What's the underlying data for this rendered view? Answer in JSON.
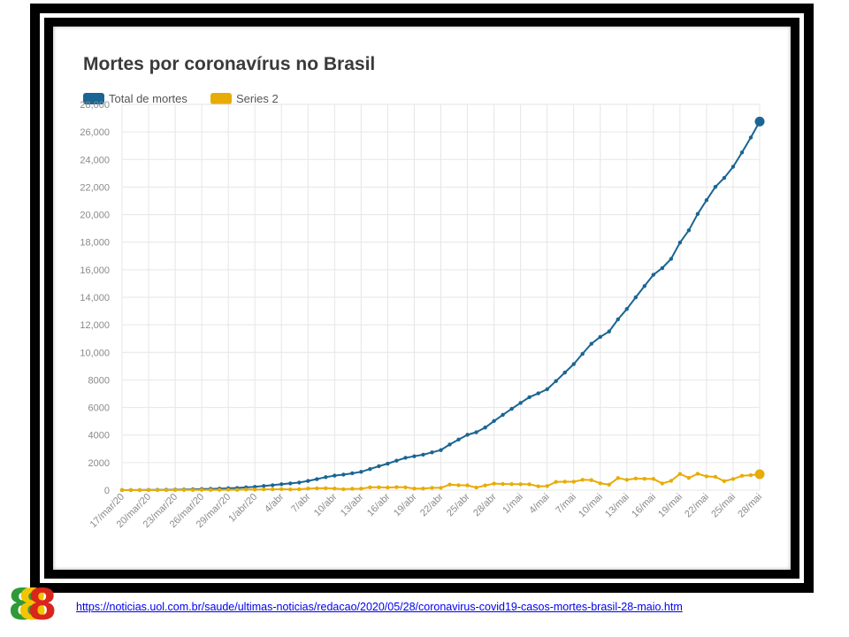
{
  "link_url_text": "https://noticias.uol.com.br/saude/ultimas-noticias/redacao/2020/05/28/coronavirus-covid19-casos-mortes-brasil-28-maio.htm",
  "logo_text": "8",
  "colors": {
    "series1": "#1a6593",
    "series2": "#e8ac06",
    "grid": "#e6e6e6",
    "logo_green": "#2f9a3a",
    "logo_yellow": "#f2c500",
    "logo_red": "#d8261c"
  },
  "chart_data": {
    "type": "line",
    "title": "Mortes por coronavírus no Brasil",
    "grid": true,
    "legend_position": "top-left",
    "ylim": [
      0,
      28000
    ],
    "yticks": [
      0,
      2000,
      4000,
      6000,
      8000,
      10000,
      12000,
      14000,
      16000,
      18000,
      20000,
      22000,
      24000,
      26000,
      28000
    ],
    "ytick_labels": [
      "0",
      "2000",
      "4000",
      "6000",
      "8000",
      "10,000",
      "12,000",
      "14,000",
      "16,000",
      "18,000",
      "20,000",
      "22,000",
      "24,000",
      "26,000",
      "28,000"
    ],
    "x": [
      "17/mar/20",
      "18/mar/20",
      "19/mar/20",
      "20/mar/20",
      "21/mar/20",
      "22/mar/20",
      "23/mar/20",
      "24/mar/20",
      "25/mar/20",
      "26/mar/20",
      "27/mar/20",
      "28/mar/20",
      "29/mar/20",
      "30/mar/20",
      "31/mar/20",
      "1/abr/20",
      "2/abr",
      "3/abr",
      "4/abr",
      "5/abr",
      "6/abr",
      "7/abr",
      "8/abr",
      "9/abr",
      "10/abr",
      "11/abr",
      "12/abr",
      "13/abr",
      "14/abr",
      "15/abr",
      "16/abr",
      "17/abr",
      "18/abr",
      "19/abr",
      "20/abr",
      "21/abr",
      "22/abr",
      "23/abr",
      "24/abr",
      "25/abr",
      "26/abr",
      "27/abr",
      "28/abr",
      "29/abr",
      "30/abr",
      "1/mai",
      "2/mai",
      "3/mai",
      "4/mai",
      "5/mai",
      "6/mai",
      "7/mai",
      "8/mai",
      "9/mai",
      "10/mai",
      "11/mai",
      "12/mai",
      "13/mai",
      "14/mai",
      "15/mai",
      "16/mai",
      "17/mai",
      "18/mai",
      "19/mai",
      "20/mai",
      "21/mai",
      "22/mai",
      "23/mai",
      "24/mai",
      "25/mai",
      "26/mai",
      "27/mai",
      "28/mai"
    ],
    "x_tick_labels": [
      "17/mar/20",
      "20/mar/20",
      "23/mar/20",
      "26/mar/20",
      "29/mar/20",
      "1/abr/20",
      "4/abr",
      "7/abr",
      "10/abr",
      "13/abr",
      "16/abr",
      "19/abr",
      "22/abr",
      "25/abr",
      "28/abr",
      "1/mai",
      "4/mai",
      "7/mai",
      "10/mai",
      "13/mai",
      "16/mai",
      "19/mai",
      "22/mai",
      "25/mai",
      "28/mai"
    ],
    "series": [
      {
        "name": "Total de mortes",
        "color": "#1a6593",
        "values": [
          1,
          4,
          7,
          11,
          18,
          25,
          34,
          46,
          57,
          77,
          92,
          111,
          136,
          159,
          201,
          240,
          299,
          359,
          432,
          486,
          553,
          667,
          800,
          941,
          1056,
          1124,
          1223,
          1328,
          1532,
          1736,
          1924,
          2141,
          2347,
          2462,
          2575,
          2741,
          2906,
          3313,
          3670,
          4016,
          4205,
          4543,
          5017,
          5466,
          5901,
          6329,
          6750,
          7025,
          7321,
          7921,
          8536,
          9146,
          9897,
          10627,
          11123,
          11519,
          12400,
          13149,
          13993,
          14817,
          15633,
          16118,
          16792,
          17971,
          18859,
          20047,
          21048,
          22013,
          22666,
          23473,
          24512,
          25598,
          26754
        ]
      },
      {
        "name": "Series 2",
        "color": "#e8ac06",
        "values": [
          1,
          3,
          3,
          4,
          7,
          7,
          9,
          12,
          11,
          20,
          15,
          19,
          25,
          23,
          42,
          39,
          59,
          60,
          73,
          54,
          67,
          114,
          133,
          141,
          115,
          68,
          99,
          105,
          204,
          204,
          188,
          217,
          206,
          115,
          113,
          166,
          165,
          407,
          357,
          346,
          189,
          338,
          474,
          449,
          435,
          428,
          421,
          275,
          296,
          600,
          615,
          610,
          751,
          730,
          496,
          396,
          881,
          749,
          844,
          824,
          816,
          485,
          674,
          1179,
          888,
          1188,
          1001,
          965,
          653,
          807,
          1039,
          1086,
          1156
        ]
      }
    ]
  }
}
